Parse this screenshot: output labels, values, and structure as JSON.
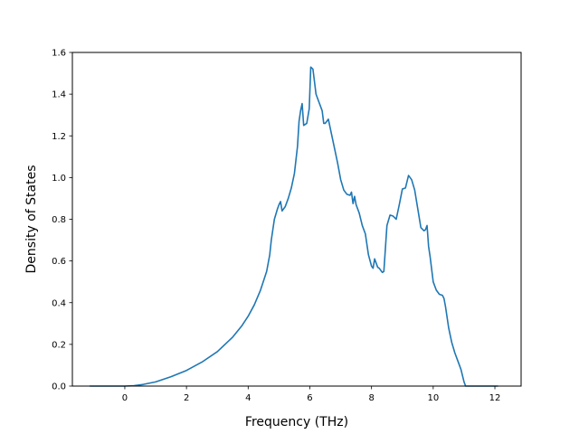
{
  "chart_data": {
    "type": "line",
    "title": "",
    "xlabel": "Frequency (THz)",
    "ylabel": "Density of States",
    "xlim": [
      -1.7,
      12.85
    ],
    "ylim": [
      0.0,
      1.6
    ],
    "x_ticks": [
      0,
      2,
      4,
      6,
      8,
      10,
      12
    ],
    "y_ticks": [
      0.0,
      0.2,
      0.4,
      0.6,
      0.8,
      1.0,
      1.2,
      1.4,
      1.6
    ],
    "x_tick_labels": [
      "0",
      "2",
      "4",
      "6",
      "8",
      "10",
      "12"
    ],
    "y_tick_labels": [
      "0.0",
      "0.2",
      "0.4",
      "0.6",
      "0.8",
      "1.0",
      "1.2",
      "1.4",
      "1.6"
    ],
    "grid": false,
    "legend": "none",
    "series": [
      {
        "color": "#1f77b4",
        "x": [
          -1.14,
          -0.5,
          0.0,
          0.3,
          0.6,
          1.0,
          1.5,
          2.0,
          2.5,
          3.0,
          3.5,
          3.8,
          4.0,
          4.2,
          4.4,
          4.6,
          4.7,
          4.75,
          4.85,
          4.95,
          5.0,
          5.05,
          5.1,
          5.2,
          5.3,
          5.4,
          5.5,
          5.6,
          5.65,
          5.7,
          5.75,
          5.8,
          5.9,
          5.98,
          6.03,
          6.1,
          6.2,
          6.3,
          6.35,
          6.4,
          6.45,
          6.5,
          6.6,
          6.7,
          6.8,
          6.9,
          7.0,
          7.1,
          7.2,
          7.3,
          7.35,
          7.4,
          7.45,
          7.5,
          7.6,
          7.7,
          7.8,
          7.9,
          8.0,
          8.05,
          8.1,
          8.2,
          8.25,
          8.3,
          8.35,
          8.4,
          8.5,
          8.6,
          8.7,
          8.8,
          8.9,
          9.0,
          9.1,
          9.2,
          9.3,
          9.4,
          9.5,
          9.6,
          9.7,
          9.75,
          9.8,
          9.85,
          9.9,
          10.0,
          10.1,
          10.2,
          10.3,
          10.35,
          10.4,
          10.45,
          10.5,
          10.6,
          10.7,
          10.8,
          10.9,
          11.0,
          11.05,
          11.1,
          11.5,
          12.1
        ],
        "values": [
          0.0,
          0.0,
          0.0,
          0.002,
          0.008,
          0.02,
          0.045,
          0.075,
          0.115,
          0.165,
          0.235,
          0.29,
          0.335,
          0.39,
          0.46,
          0.55,
          0.63,
          0.7,
          0.8,
          0.85,
          0.87,
          0.885,
          0.84,
          0.86,
          0.9,
          0.95,
          1.02,
          1.15,
          1.27,
          1.32,
          1.355,
          1.25,
          1.26,
          1.33,
          1.53,
          1.52,
          1.4,
          1.36,
          1.34,
          1.32,
          1.26,
          1.26,
          1.28,
          1.21,
          1.14,
          1.07,
          0.99,
          0.94,
          0.92,
          0.915,
          0.93,
          0.875,
          0.91,
          0.87,
          0.83,
          0.77,
          0.73,
          0.63,
          0.575,
          0.565,
          0.61,
          0.57,
          0.565,
          0.555,
          0.545,
          0.55,
          0.77,
          0.82,
          0.815,
          0.8,
          0.87,
          0.945,
          0.95,
          1.01,
          0.99,
          0.94,
          0.85,
          0.76,
          0.745,
          0.75,
          0.77,
          0.67,
          0.62,
          0.5,
          0.46,
          0.44,
          0.435,
          0.42,
          0.38,
          0.33,
          0.28,
          0.21,
          0.16,
          0.12,
          0.08,
          0.02,
          0.0,
          0.0,
          0.0,
          0.0
        ]
      }
    ]
  }
}
